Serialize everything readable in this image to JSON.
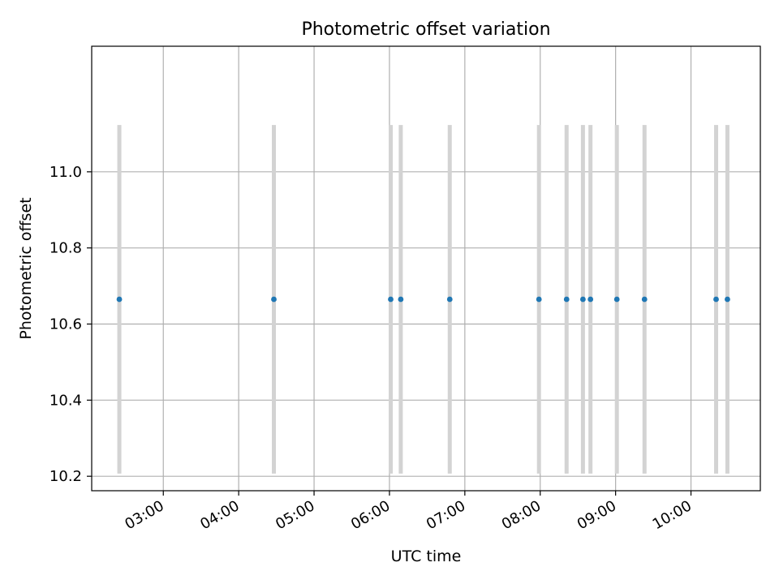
{
  "chart_data": {
    "type": "scatter",
    "title": "Photometric offset variation",
    "xlabel": "UTC time",
    "ylabel": "Photometric offset",
    "grid": true,
    "x_ticks": [
      "03:00",
      "04:00",
      "05:00",
      "06:00",
      "07:00",
      "08:00",
      "09:00",
      "10:00"
    ],
    "x_tick_values": [
      3.0,
      4.0,
      5.0,
      6.0,
      7.0,
      8.0,
      9.0,
      10.0
    ],
    "xlim": [
      2.05,
      10.92
    ],
    "y_ticks": [
      "10.2",
      "10.4",
      "10.6",
      "10.8",
      "11.0"
    ],
    "y_tick_values": [
      10.2,
      10.4,
      10.6,
      10.8,
      11.0
    ],
    "ylim": [
      10.162,
      11.33
    ],
    "colors": {
      "points": "#1f77b4",
      "error_bars": "#d3d3d3",
      "grid": "#b0b0b0"
    },
    "points": [
      {
        "x": "02:25",
        "y": 10.665,
        "yerr": 0.458
      },
      {
        "x": "04:28",
        "y": 10.665,
        "yerr": 0.458
      },
      {
        "x": "06:01",
        "y": 10.665,
        "yerr": 0.458
      },
      {
        "x": "06:09",
        "y": 10.665,
        "yerr": 0.458
      },
      {
        "x": "06:48",
        "y": 10.665,
        "yerr": 0.458
      },
      {
        "x": "07:59",
        "y": 10.665,
        "yerr": 0.458
      },
      {
        "x": "08:21",
        "y": 10.665,
        "yerr": 0.458
      },
      {
        "x": "08:34",
        "y": 10.665,
        "yerr": 0.458
      },
      {
        "x": "08:40",
        "y": 10.665,
        "yerr": 0.458
      },
      {
        "x": "09:01",
        "y": 10.665,
        "yerr": 0.458
      },
      {
        "x": "09:23",
        "y": 10.665,
        "yerr": 0.458
      },
      {
        "x": "10:20",
        "y": 10.665,
        "yerr": 0.458
      },
      {
        "x": "10:29",
        "y": 10.665,
        "yerr": 0.458
      }
    ]
  }
}
